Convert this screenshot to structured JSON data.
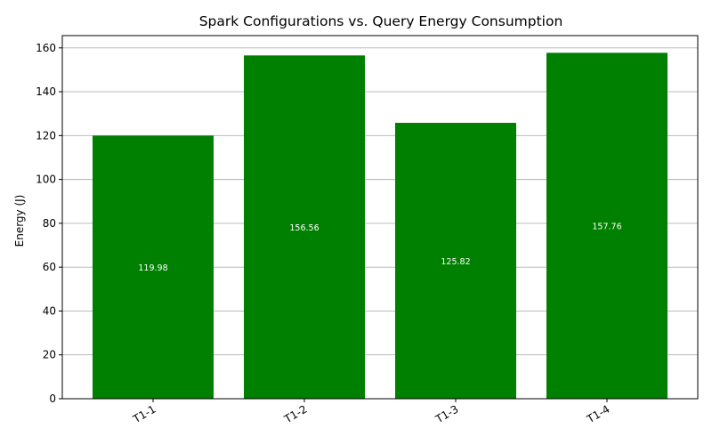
{
  "chart_data": {
    "type": "bar",
    "title": "Spark Configurations vs. Query Energy Consumption",
    "xlabel": "",
    "ylabel": "Energy (J)",
    "categories": [
      "T1-1",
      "T1-2",
      "T1-3",
      "T1-4"
    ],
    "values": [
      119.98,
      156.56,
      125.82,
      157.76
    ],
    "data_labels": [
      "119.98",
      "156.56",
      "125.82",
      "157.76"
    ],
    "ylim": [
      0,
      165.6
    ],
    "yticks": [
      0,
      20,
      40,
      60,
      80,
      100,
      120,
      140,
      160
    ],
    "grid": "y-axis",
    "bar_color": "#008000",
    "label_color": "#ffffff"
  }
}
